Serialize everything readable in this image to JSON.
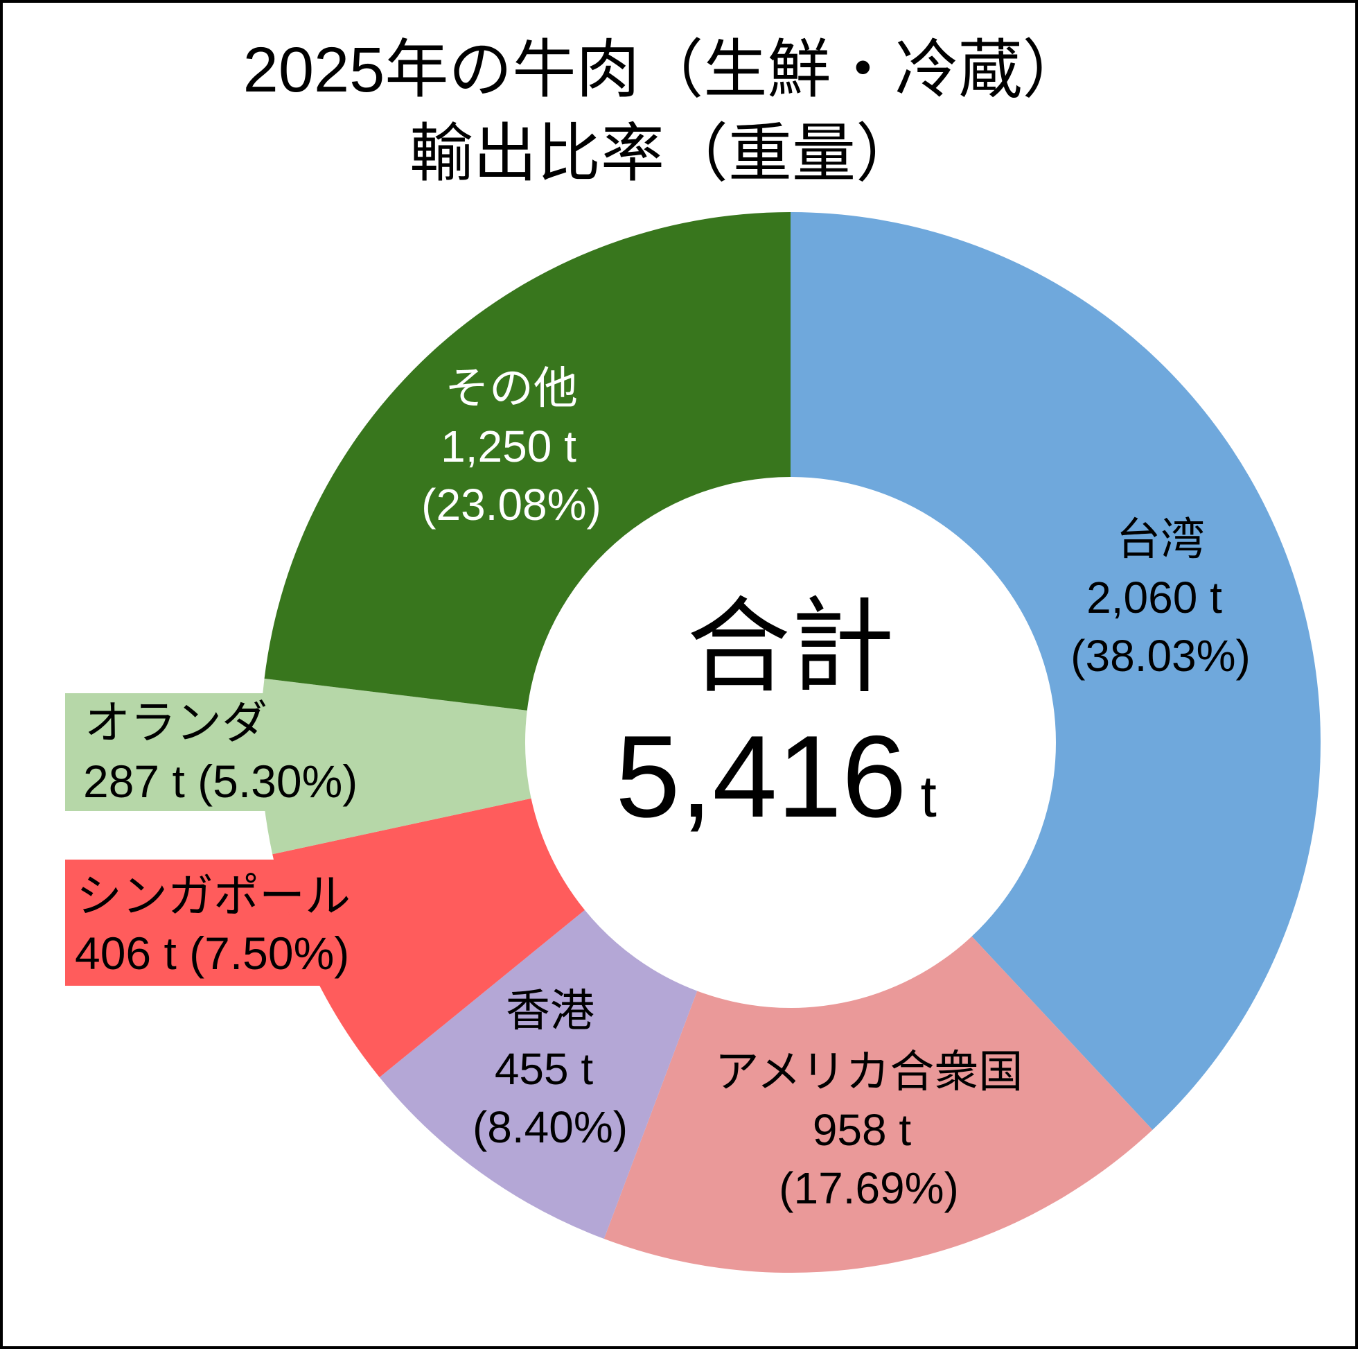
{
  "chart_data": {
    "type": "pie",
    "variant": "donut",
    "title_lines": [
      "2025年の牛肉（生鮮・冷蔵）",
      "輸出比率（重量）"
    ],
    "center": {
      "label": "合計",
      "value": "5,416",
      "unit": "t"
    },
    "unit": "t",
    "slices": [
      {
        "name": "台湾",
        "value": 2060,
        "value_label": "2,060 t",
        "percent": 38.03,
        "percent_label": "(38.03%)",
        "color": "#6FA8DC",
        "text_color": "#000000"
      },
      {
        "name": "アメリカ合衆国",
        "value": 958,
        "value_label": "958 t",
        "percent": 17.69,
        "percent_label": "(17.69%)",
        "color": "#EA9999",
        "text_color": "#000000"
      },
      {
        "name": "香港",
        "value": 455,
        "value_label": "455 t",
        "percent": 8.4,
        "percent_label": "(8.40%)",
        "color": "#B4A7D6",
        "text_color": "#000000"
      },
      {
        "name": "シンガポール",
        "value": 406,
        "value_label": "406 t (7.50%)",
        "percent": 7.5,
        "color": "#FF5C5C",
        "text_color": "#000000"
      },
      {
        "name": "オランダ",
        "value": 287,
        "value_label": "287 t (5.30%)",
        "percent": 5.3,
        "color": "#B6D7A8",
        "text_color": "#000000"
      },
      {
        "name": "その他",
        "value": 1250,
        "value_label": "1,250 t",
        "percent": 23.08,
        "percent_label": "(23.08%)",
        "color": "#38761D",
        "text_color": "#FFFFFF"
      }
    ],
    "start_angle": "12 o'clock",
    "direction": "clockwise",
    "legend": "none"
  }
}
